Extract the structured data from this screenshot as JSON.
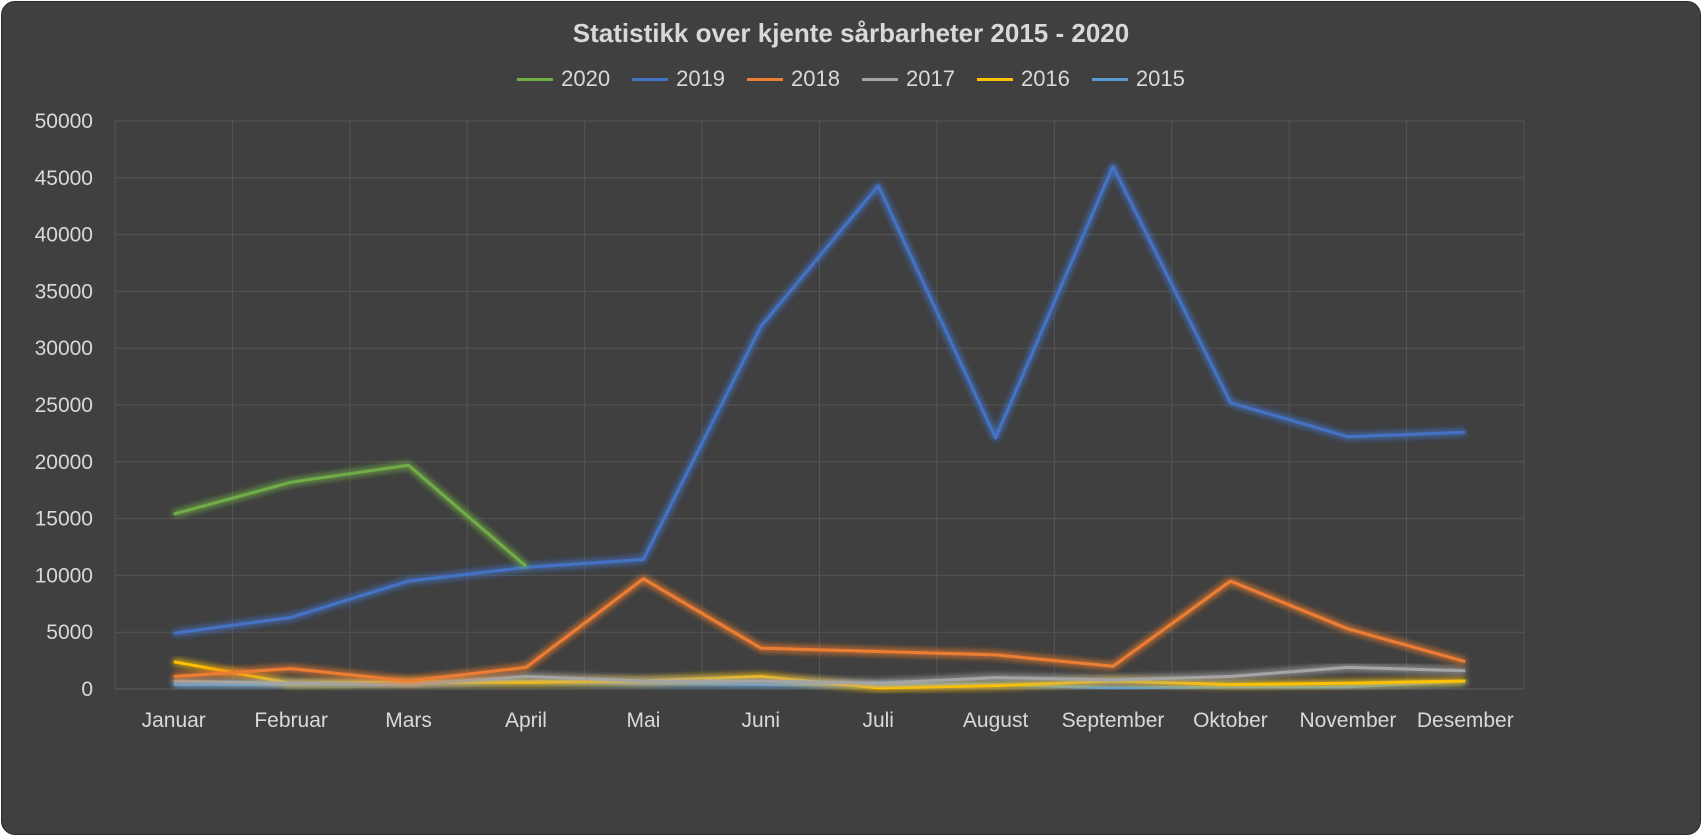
{
  "chart_data": {
    "type": "line",
    "title": "Statistikk over kjente sårbarheter 2015 - 2020",
    "xlabel": "",
    "ylabel": "",
    "categories": [
      "Januar",
      "Februar",
      "Mars",
      "April",
      "Mai",
      "Juni",
      "Juli",
      "August",
      "September",
      "Oktober",
      "November",
      "Desember"
    ],
    "ylim": [
      0,
      50000
    ],
    "yticks": [
      0,
      5000,
      10000,
      15000,
      20000,
      25000,
      30000,
      35000,
      40000,
      45000,
      50000
    ],
    "grid": true,
    "legend_position": "top",
    "series": [
      {
        "name": "2020",
        "color": "#70ad47",
        "values": [
          15400,
          18200,
          19700,
          10800,
          null,
          null,
          null,
          null,
          null,
          null,
          null,
          null
        ]
      },
      {
        "name": "2019",
        "color": "#4472c4",
        "values": [
          4900,
          6300,
          9500,
          10700,
          11400,
          31900,
          44300,
          22100,
          46000,
          25200,
          22200,
          22600
        ]
      },
      {
        "name": "2018",
        "color": "#ed7d31",
        "values": [
          1100,
          1800,
          700,
          1900,
          9700,
          3600,
          3300,
          3000,
          2000,
          9500,
          5300,
          2400
        ]
      },
      {
        "name": "2017",
        "color": "#a5a5a5",
        "values": [
          700,
          500,
          400,
          1100,
          700,
          700,
          500,
          1000,
          800,
          1100,
          1900,
          1600
        ]
      },
      {
        "name": "2016",
        "color": "#ffc000",
        "values": [
          2400,
          500,
          600,
          600,
          700,
          1100,
          100,
          300,
          700,
          400,
          500,
          700
        ]
      },
      {
        "name": "2015",
        "color": "#5b9bd5",
        "values": [
          400,
          400,
          600,
          700,
          500,
          400,
          400,
          400,
          100,
          200,
          200,
          700
        ]
      }
    ]
  }
}
